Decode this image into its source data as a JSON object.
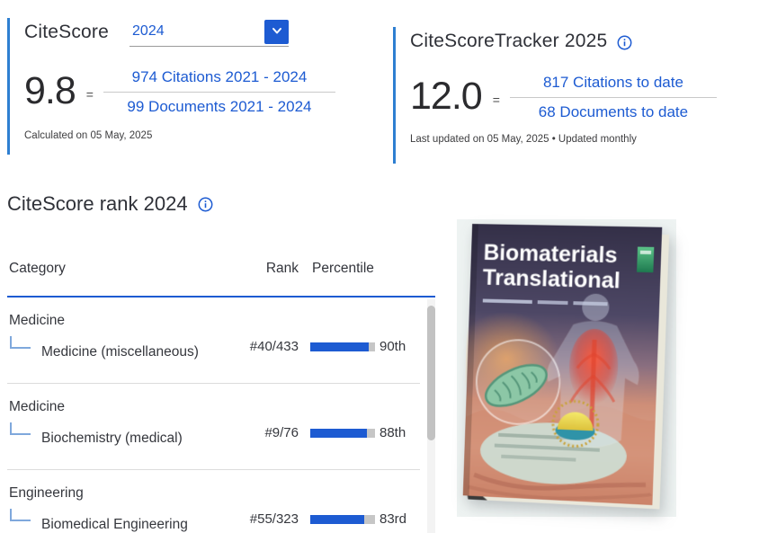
{
  "citescore": {
    "title": "CiteScore",
    "year_selected": "2024",
    "value": "9.8",
    "equals": "=",
    "numerator": "974 Citations 2021 - 2024",
    "denominator": "99 Documents 2021 - 2024",
    "footnote": "Calculated on 05 May, 2025"
  },
  "tracker": {
    "title": "CiteScoreTracker 2025",
    "value": "12.0",
    "equals": "=",
    "numerator": "817 Citations to date",
    "denominator": "68 Documents to date",
    "footnote": "Last updated on 05 May, 2025 • Updated monthly"
  },
  "rank": {
    "title": "CiteScore rank 2024",
    "columns": {
      "category": "Category",
      "rank": "Rank",
      "percentile": "Percentile"
    },
    "rows": [
      {
        "parent": "Medicine",
        "child": "Medicine (miscellaneous)",
        "rank": "#40/433",
        "percentile": 90,
        "percentile_label": "90th"
      },
      {
        "parent": "Medicine",
        "child": "Biochemistry (medical)",
        "rank": "#9/76",
        "percentile": 88,
        "percentile_label": "88th"
      },
      {
        "parent": "Engineering",
        "child": "Biomedical Engineering",
        "rank": "#55/323",
        "percentile": 83,
        "percentile_label": "83rd"
      }
    ]
  },
  "journal": {
    "cover_title_line1": "Biomaterials",
    "cover_title_line2": "Translational"
  },
  "colors": {
    "link_blue": "#1d5bd2",
    "accent_bar_blue": "#2e7fd1",
    "bar_fill": "#1d5bd2",
    "bar_track": "#c6c6c6",
    "rule_blue": "#1d5bd2"
  }
}
